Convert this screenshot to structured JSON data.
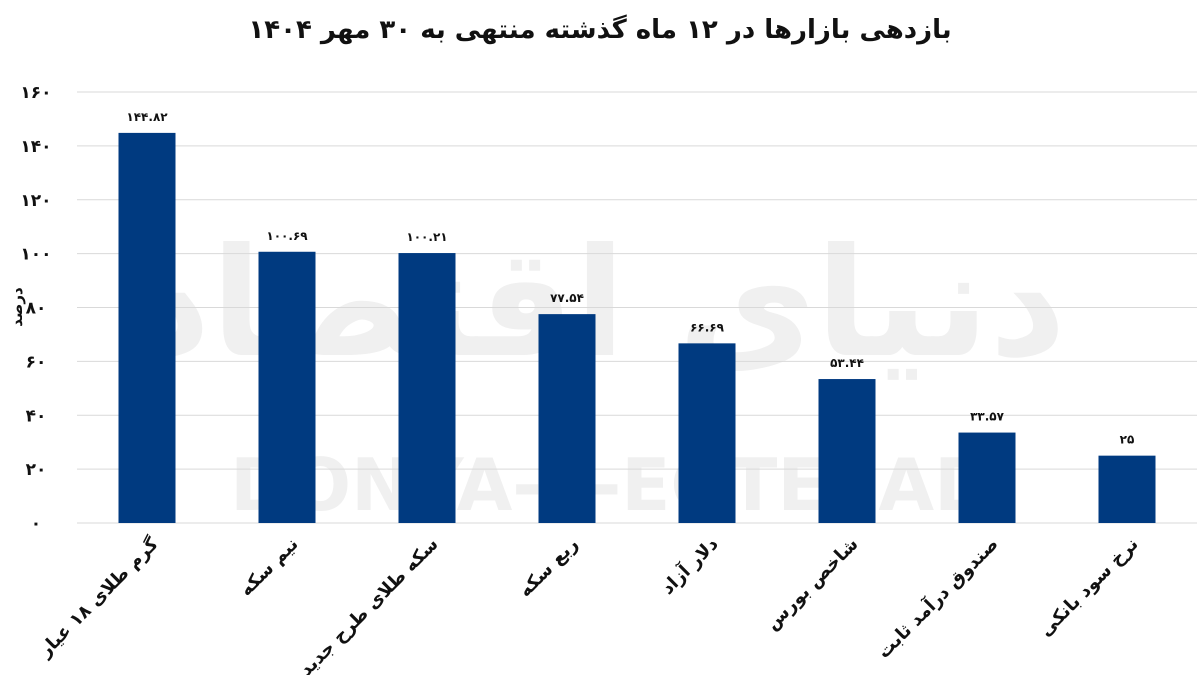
{
  "chart_data": {
    "type": "bar",
    "title": "بازدهی بازارها در ۱۲ ماه گذشته منتهی به ۳۰ مهر ۱۴۰۴",
    "ylabel": "درصد",
    "xlabel": "",
    "ylim": [
      0,
      160
    ],
    "yticks": [
      "۰",
      "۲۰",
      "۴۰",
      "۶۰",
      "۸۰",
      "۱۰۰",
      "۱۲۰",
      "۱۴۰",
      "۱۶۰"
    ],
    "categories": [
      "گرم طلای ۱۸ عیار",
      "نیم سکه",
      "سکه طلای طرح جدید",
      "ربع سکه",
      "دلار آزاد",
      "شاخص بورس",
      "صندوق درآمد ثابت",
      "نرخ سود بانکی"
    ],
    "values": [
      144.82,
      100.69,
      100.21,
      77.54,
      66.69,
      53.44,
      33.57,
      25
    ],
    "data_labels": [
      "۱۴۴.۸۲",
      "۱۰۰.۶۹",
      "۱۰۰.۲۱",
      "۷۷.۵۴",
      "۶۶.۶۹",
      "۵۳.۴۴",
      "۳۳.۵۷",
      "۲۵"
    ],
    "bar_color": "#003a80",
    "grid": true,
    "legend": "none"
  },
  "watermark": {
    "latin": "DONYA-E-EGTESAD",
    "persian": "دنیای اقتصاد"
  }
}
